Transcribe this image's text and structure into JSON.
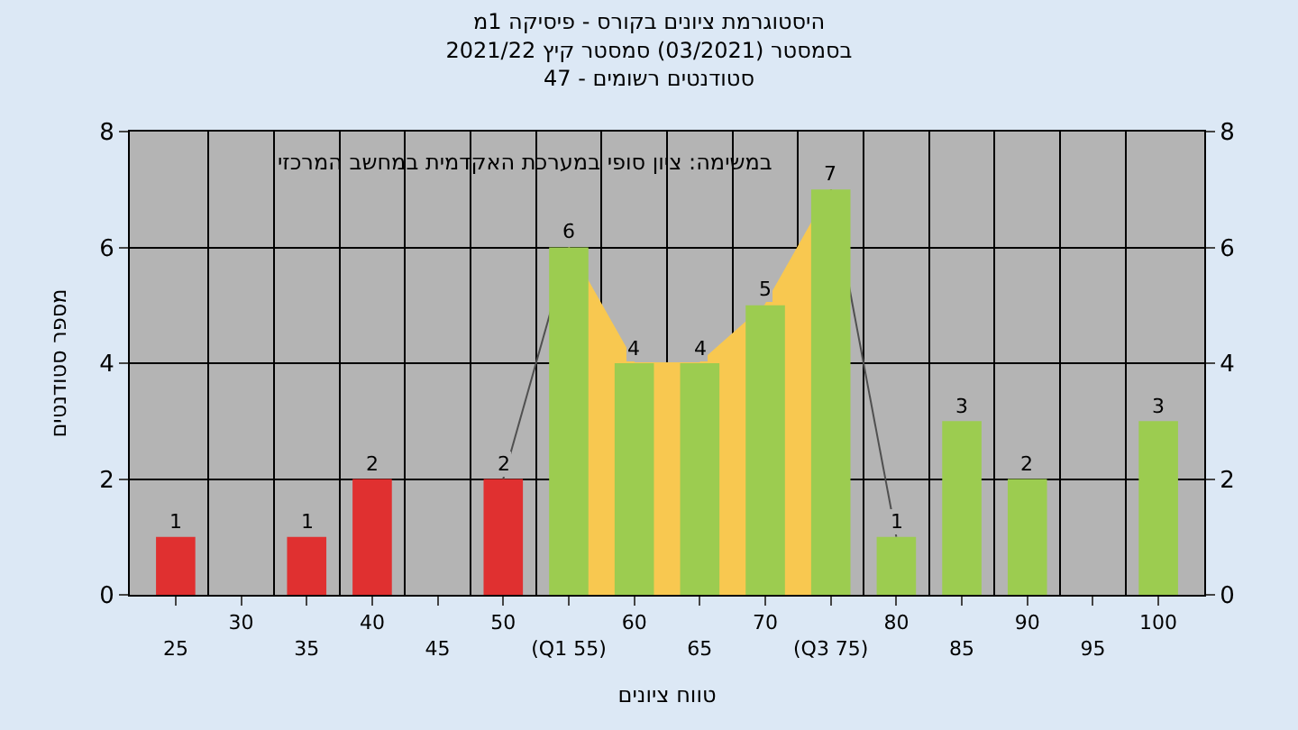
{
  "chart_data": {
    "type": "bar",
    "title": "היסטוגרמת ציונים בקורס - פיסיקה 1מ",
    "subtitle": "בסמסטר (03/2021) סמסטר קיץ 2021/22\nסטודנטים רשומים - 47",
    "xlabel": "טווח ציונים",
    "ylabel": "מספר סטודנטים",
    "annotations": [
      "במשימה: ציון סופי במערכת האקדמית במחשב המרכזי"
    ],
    "categories": [
      "25",
      "30",
      "35",
      "40",
      "45",
      "50",
      "(Q1 55)",
      "60",
      "65",
      "70",
      "(Q3 75)",
      "80",
      "85",
      "90",
      "95",
      "100"
    ],
    "series": [
      {
        "type": "area",
        "color": "#f8c850",
        "values": [
          null,
          null,
          null,
          null,
          null,
          null,
          6,
          4,
          4,
          5,
          7,
          null,
          null,
          null,
          null,
          null
        ]
      },
      {
        "type": "line",
        "color": "#505050",
        "values": [
          null,
          null,
          null,
          null,
          null,
          2,
          6,
          null,
          null,
          null,
          7,
          1,
          null,
          null,
          null,
          null
        ]
      },
      {
        "colors": [
          "#e03030",
          "#e03030",
          "#e03030",
          "#e03030",
          "#e03030",
          "#e03030",
          "#9ccc50",
          "#9ccc50",
          "#9ccc50",
          "#9ccc50",
          "#9ccc50",
          "#9ccc50",
          "#9ccc50",
          "#9ccc50",
          "#9ccc50",
          "#9ccc50"
        ],
        "values": [
          1,
          0,
          1,
          2,
          0,
          2,
          6,
          4,
          4,
          5,
          7,
          1,
          3,
          2,
          0,
          3
        ],
        "value_labels": [
          "1",
          null,
          "1",
          "2",
          null,
          "2",
          "6",
          "4",
          "4",
          "5",
          "7",
          "1",
          "3",
          "2",
          null,
          "3"
        ]
      }
    ],
    "ylim": [
      0,
      8
    ],
    "yticks": [
      0,
      2,
      4,
      6,
      8
    ],
    "y2lim": [
      0,
      8
    ],
    "y2ticks": [
      0,
      2,
      4,
      6,
      8
    ],
    "grid": true
  }
}
